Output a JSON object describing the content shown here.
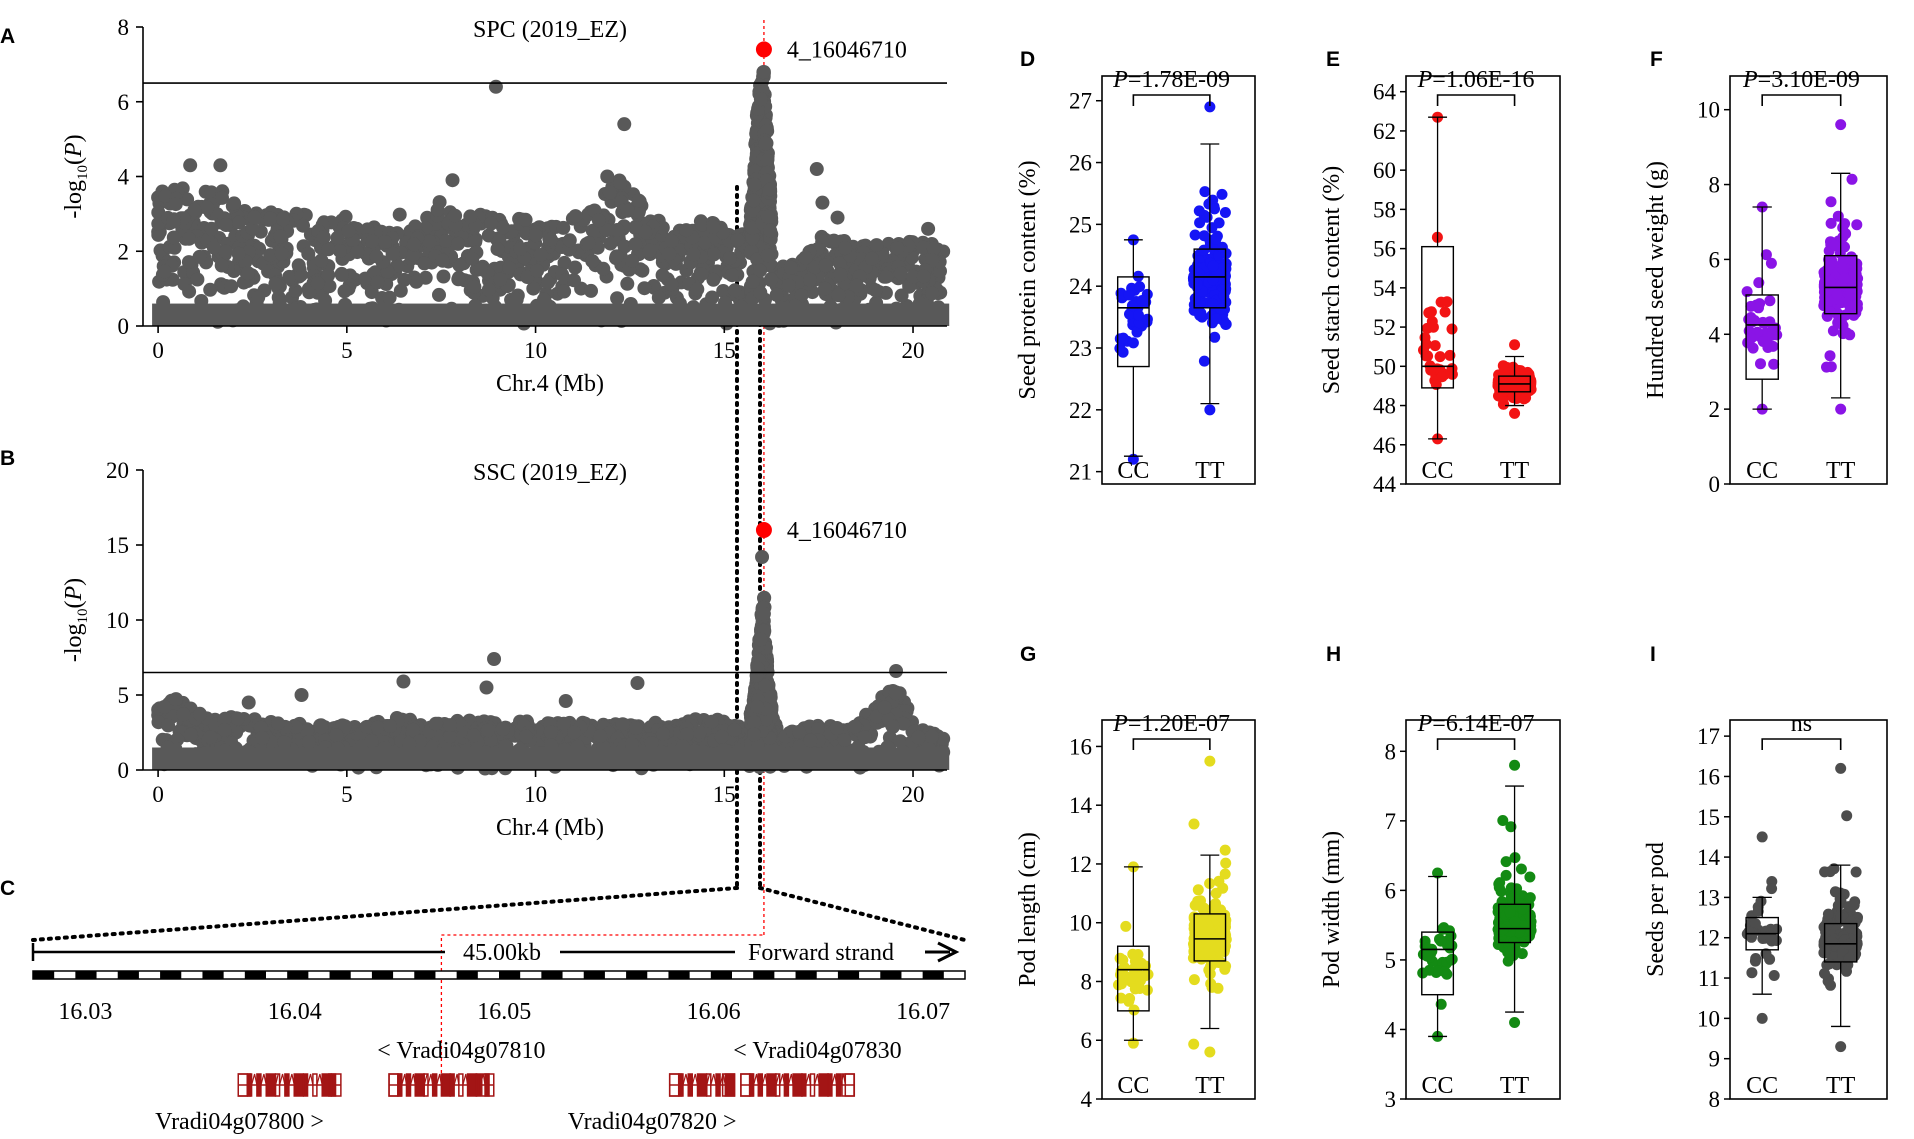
{
  "panel_labels": {
    "A": "A",
    "B": "B",
    "C": "C",
    "D": "D",
    "E": "E",
    "F": "F",
    "G": "G",
    "H": "H",
    "I": "I"
  },
  "chart_data": [
    {
      "id": "A",
      "type": "scatter",
      "kind": "manhattan",
      "title": "SPC (2019_EZ)",
      "xlabel": "Chr.4 (Mb)",
      "ylabel": "-log10(P)",
      "xlim": [
        -0.4,
        20.9
      ],
      "ylim": [
        0,
        8
      ],
      "xticks": [
        0,
        5,
        10,
        15,
        20
      ],
      "yticks": [
        0,
        2,
        4,
        6,
        8
      ],
      "threshold": 6.5,
      "lead_snp": {
        "label": "4_16046710",
        "x": 16.05,
        "y": 7.4
      },
      "envelope": [
        [
          0,
          3.6
        ],
        [
          0.5,
          3.9
        ],
        [
          1,
          3.6
        ],
        [
          1.5,
          4.0
        ],
        [
          2,
          3.4
        ],
        [
          2.5,
          3.1
        ],
        [
          3,
          3.1
        ],
        [
          3.5,
          3.1
        ],
        [
          4,
          3.0
        ],
        [
          4.5,
          2.8
        ],
        [
          5,
          3.0
        ],
        [
          5.5,
          2.6
        ],
        [
          6,
          2.8
        ],
        [
          6.5,
          3.2
        ],
        [
          7,
          3.0
        ],
        [
          7.5,
          3.4
        ],
        [
          8,
          3.0
        ],
        [
          8.5,
          3.0
        ],
        [
          9,
          3.0
        ],
        [
          9.5,
          2.9
        ],
        [
          10,
          2.8
        ],
        [
          10.5,
          2.7
        ],
        [
          11,
          3.0
        ],
        [
          11.5,
          3.3
        ],
        [
          12,
          3.7
        ],
        [
          12.3,
          4.3
        ],
        [
          12.6,
          3.6
        ],
        [
          13,
          3.1
        ],
        [
          13.5,
          2.6
        ],
        [
          14,
          2.7
        ],
        [
          14.5,
          2.9
        ],
        [
          15,
          2.6
        ],
        [
          15.4,
          2.5
        ],
        [
          15.6,
          2.6
        ],
        [
          15.75,
          3.5
        ],
        [
          15.85,
          5.5
        ],
        [
          15.95,
          6.5
        ],
        [
          16.05,
          6.9
        ],
        [
          16.15,
          5.0
        ],
        [
          16.25,
          3.0
        ],
        [
          16.4,
          1.8
        ],
        [
          16.6,
          1.6
        ],
        [
          17,
          1.7
        ],
        [
          17.5,
          2.4
        ],
        [
          18,
          2.4
        ],
        [
          18.5,
          2.2
        ],
        [
          19,
          2.2
        ],
        [
          19.5,
          2.2
        ],
        [
          20,
          2.3
        ],
        [
          20.5,
          2.2
        ],
        [
          20.8,
          2.0
        ]
      ],
      "outliers": [
        [
          8.95,
          6.4
        ],
        [
          12.35,
          5.4
        ],
        [
          17.45,
          4.2
        ],
        [
          7.8,
          3.9
        ],
        [
          0.85,
          4.3
        ],
        [
          1.65,
          4.3
        ],
        [
          11.9,
          4.0
        ],
        [
          17.6,
          3.3
        ],
        [
          18.0,
          2.9
        ],
        [
          20.4,
          2.6
        ]
      ]
    },
    {
      "id": "B",
      "type": "scatter",
      "kind": "manhattan",
      "title": "SSC (2019_EZ)",
      "xlabel": "Chr.4 (Mb)",
      "ylabel": "-log10(P)",
      "xlim": [
        -0.4,
        20.9
      ],
      "ylim": [
        0,
        20
      ],
      "xticks": [
        0,
        5,
        10,
        15,
        20
      ],
      "yticks": [
        0,
        5,
        10,
        15,
        20
      ],
      "threshold": 6.5,
      "lead_snp": {
        "label": "4_16046710",
        "x": 16.05,
        "y": 16.0
      },
      "envelope": [
        [
          0,
          4.4
        ],
        [
          0.5,
          4.8
        ],
        [
          1,
          3.9
        ],
        [
          1.5,
          3.4
        ],
        [
          2,
          3.6
        ],
        [
          2.5,
          3.5
        ],
        [
          3,
          3.4
        ],
        [
          3.5,
          3.1
        ],
        [
          4,
          3.1
        ],
        [
          4.5,
          3.0
        ],
        [
          5,
          3.0
        ],
        [
          5.5,
          3.0
        ],
        [
          6,
          3.4
        ],
        [
          6.5,
          3.6
        ],
        [
          7,
          3.1
        ],
        [
          7.5,
          3.2
        ],
        [
          8,
          3.5
        ],
        [
          8.5,
          3.4
        ],
        [
          9,
          3.1
        ],
        [
          9.5,
          3.4
        ],
        [
          10,
          3.3
        ],
        [
          10.5,
          3.1
        ],
        [
          11,
          3.3
        ],
        [
          11.5,
          3.1
        ],
        [
          12,
          3.0
        ],
        [
          12.5,
          3.2
        ],
        [
          13,
          3.3
        ],
        [
          13.5,
          2.9
        ],
        [
          14,
          3.2
        ],
        [
          14.5,
          3.6
        ],
        [
          15,
          3.4
        ],
        [
          15.4,
          3.1
        ],
        [
          15.6,
          2.6
        ],
        [
          15.8,
          5.0
        ],
        [
          15.95,
          9.5
        ],
        [
          16.05,
          12.0
        ],
        [
          16.15,
          6.5
        ],
        [
          16.3,
          3.5
        ],
        [
          16.5,
          2.3
        ],
        [
          17,
          2.8
        ],
        [
          17.5,
          3.0
        ],
        [
          18,
          2.9
        ],
        [
          18.5,
          2.9
        ],
        [
          19,
          4.5
        ],
        [
          19.4,
          5.5
        ],
        [
          19.8,
          5.0
        ],
        [
          20,
          3.0
        ],
        [
          20.5,
          2.5
        ],
        [
          20.8,
          2.1
        ]
      ],
      "outliers": [
        [
          8.9,
          7.4
        ],
        [
          6.5,
          5.9
        ],
        [
          8.7,
          5.5
        ],
        [
          12.7,
          5.8
        ],
        [
          3.8,
          5.0
        ],
        [
          19.55,
          6.6
        ],
        [
          16.0,
          14.2
        ],
        [
          2.4,
          4.5
        ],
        [
          10.8,
          4.6
        ]
      ]
    },
    {
      "id": "C",
      "type": "gene_track",
      "region_label": "45.00kb",
      "strand_label": "Forward strand",
      "xlim": [
        16.0275,
        16.072
      ],
      "xticks": [
        "16.03",
        "16.04",
        "16.05",
        "16.06",
        "16.07"
      ],
      "genes": [
        {
          "name": "Vradi04g07800 >",
          "start": 16.0373,
          "end": 16.0422,
          "label_pos": "below"
        },
        {
          "name": "< Vradi04g07810",
          "start": 16.0445,
          "end": 16.0495,
          "label_pos": "above"
        },
        {
          "name": "Vradi04g07820 >",
          "start": 16.0579,
          "end": 16.061,
          "label_pos": "below"
        },
        {
          "name": "< Vradi04g07830",
          "start": 16.0613,
          "end": 16.0667,
          "label_pos": "above"
        }
      ],
      "marker_x": 16.047
    },
    {
      "id": "D",
      "type": "box",
      "ylabel": "Seed protein content (%)",
      "categories": [
        "CC",
        "TT"
      ],
      "pvalue": "=1.78E-09",
      "color": "#1515f5",
      "ylim": [
        20.8,
        27.4
      ],
      "yticks": [
        21,
        22,
        23,
        24,
        25,
        26,
        27
      ],
      "groups": [
        {
          "whislo": 21.25,
          "q1": 22.7,
          "med": 23.65,
          "q3": 24.15,
          "whishi": 24.75,
          "n": 34,
          "pts_lo": 21.2,
          "pts_hi": 24.75
        },
        {
          "whislo": 22.1,
          "q1": 23.65,
          "med": 24.15,
          "q3": 24.6,
          "whishi": 26.3,
          "n": 240,
          "pts_lo": 22.0,
          "pts_hi": 26.9
        }
      ]
    },
    {
      "id": "E",
      "type": "box",
      "ylabel": "Seed starch content (%)",
      "categories": [
        "CC",
        "TT"
      ],
      "pvalue": "=1.06E-16",
      "color": "#f21414",
      "ylim": [
        44,
        64.8
      ],
      "yticks": [
        44,
        46,
        48,
        50,
        52,
        54,
        56,
        58,
        60,
        62,
        64
      ],
      "groups": [
        {
          "whislo": 46.3,
          "q1": 48.9,
          "med": 50.0,
          "q3": 56.1,
          "whishi": 62.7,
          "n": 30,
          "pts_lo": 46.3,
          "pts_hi": 62.7
        },
        {
          "whislo": 48.0,
          "q1": 48.7,
          "med": 49.1,
          "q3": 49.5,
          "whishi": 50.5,
          "n": 240,
          "pts_lo": 47.6,
          "pts_hi": 51.1
        }
      ]
    },
    {
      "id": "F",
      "type": "box",
      "ylabel": "Hundred seed weight (g)",
      "categories": [
        "CC",
        "TT"
      ],
      "pvalue": "=3.10E-09",
      "color": "#8a14e6",
      "ylim": [
        0,
        10.9
      ],
      "yticks": [
        0,
        2,
        4,
        6,
        8,
        10
      ],
      "groups": [
        {
          "whislo": 2.0,
          "q1": 2.8,
          "med": 4.25,
          "q3": 5.05,
          "whishi": 7.4,
          "n": 34,
          "pts_lo": 2.0,
          "pts_hi": 7.4
        },
        {
          "whislo": 2.3,
          "q1": 4.55,
          "med": 5.25,
          "q3": 6.1,
          "whishi": 8.3,
          "n": 240,
          "pts_lo": 2.0,
          "pts_hi": 9.6
        }
      ]
    },
    {
      "id": "G",
      "type": "box",
      "ylabel": "Pod length (cm)",
      "categories": [
        "CC",
        "TT"
      ],
      "pvalue": "=1.20E-07",
      "color": "#e4dc1e",
      "ylim": [
        4,
        16.9
      ],
      "yticks": [
        4,
        6,
        8,
        10,
        12,
        14,
        16
      ],
      "groups": [
        {
          "whislo": 6.0,
          "q1": 7.0,
          "med": 8.4,
          "q3": 9.2,
          "whishi": 11.9,
          "n": 34,
          "pts_lo": 5.9,
          "pts_hi": 11.9
        },
        {
          "whislo": 6.4,
          "q1": 8.7,
          "med": 9.45,
          "q3": 10.3,
          "whishi": 12.3,
          "n": 240,
          "pts_lo": 5.6,
          "pts_hi": 15.5
        }
      ]
    },
    {
      "id": "H",
      "type": "box",
      "ylabel": "Pod width (mm)",
      "categories": [
        "CC",
        "TT"
      ],
      "pvalue": "=6.14E-07",
      "color": "#138a13",
      "ylim": [
        3,
        8.45
      ],
      "yticks": [
        3,
        4,
        5,
        6,
        7,
        8
      ],
      "groups": [
        {
          "whislo": 3.9,
          "q1": 4.5,
          "med": 5.15,
          "q3": 5.4,
          "whishi": 6.2,
          "n": 34,
          "pts_lo": 3.9,
          "pts_hi": 6.25
        },
        {
          "whislo": 4.25,
          "q1": 5.25,
          "med": 5.45,
          "q3": 5.8,
          "whishi": 7.5,
          "n": 240,
          "pts_lo": 4.1,
          "pts_hi": 7.8
        }
      ]
    },
    {
      "id": "I",
      "type": "box",
      "ylabel": "Seeds per pod",
      "categories": [
        "CC",
        "TT"
      ],
      "pvalue": "ns",
      "color": "#4d4d4d",
      "ylim": [
        8,
        17.4
      ],
      "yticks": [
        8,
        9,
        10,
        11,
        12,
        13,
        14,
        15,
        16,
        17
      ],
      "groups": [
        {
          "whislo": 10.6,
          "q1": 11.7,
          "med": 12.1,
          "q3": 12.5,
          "whishi": 13.0,
          "n": 34,
          "pts_lo": 10.0,
          "pts_hi": 14.5
        },
        {
          "whislo": 9.8,
          "q1": 11.4,
          "med": 11.85,
          "q3": 12.35,
          "whishi": 13.8,
          "n": 240,
          "pts_lo": 9.3,
          "pts_hi": 16.2
        }
      ]
    }
  ]
}
